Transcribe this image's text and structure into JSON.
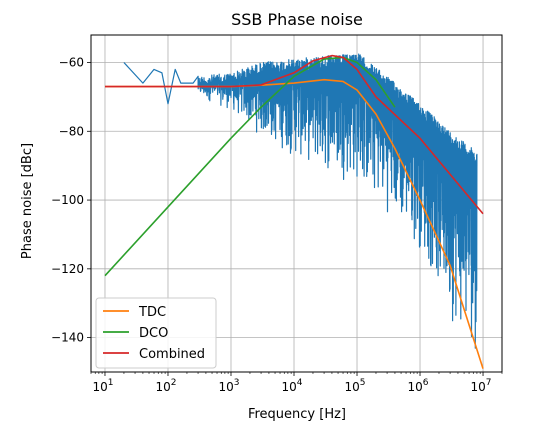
{
  "chart_data": {
    "type": "line",
    "title": "SSB Phase noise",
    "xlabel": "Frequency [Hz]",
    "ylabel": "Phase noise [dBc]",
    "xscale": "log",
    "xlim": [
      6,
      20000000
    ],
    "ylim": [
      -150,
      -52
    ],
    "grid": true,
    "legend": {
      "position": "bottom-left",
      "entries": [
        "TDC",
        "DCO",
        "Combined"
      ]
    },
    "x_ticks": [
      {
        "base": "10",
        "exp": "1"
      },
      {
        "base": "10",
        "exp": "2"
      },
      {
        "base": "10",
        "exp": "3"
      },
      {
        "base": "10",
        "exp": "4"
      },
      {
        "base": "10",
        "exp": "5"
      },
      {
        "base": "10",
        "exp": "6"
      },
      {
        "base": "10",
        "exp": "7"
      }
    ],
    "y_ticks": [
      "−140",
      "−120",
      "−100",
      "−80",
      "−60"
    ],
    "measured": {
      "color": "#1f77b4",
      "x_range": [
        20,
        8000000
      ],
      "start_points": [
        [
          20,
          -60
        ],
        [
          40,
          -66
        ],
        [
          60,
          -62
        ],
        [
          80,
          -63
        ],
        [
          100,
          -72
        ],
        [
          130,
          -62
        ],
        [
          160,
          -66
        ],
        [
          200,
          -66
        ],
        [
          250,
          -66
        ],
        [
          300,
          -64
        ]
      ],
      "upper_envelope": [
        [
          300,
          -64
        ],
        [
          1000,
          -63
        ],
        [
          3000,
          -60
        ],
        [
          10000,
          -59
        ],
        [
          30000,
          -58
        ],
        [
          50000,
          -58
        ],
        [
          100000,
          -57
        ],
        [
          300000,
          -64
        ],
        [
          1000000,
          -72
        ],
        [
          3000000,
          -80
        ],
        [
          8000000,
          -86
        ]
      ],
      "lower_envelope": [
        [
          300,
          -70
        ],
        [
          1000,
          -74
        ],
        [
          3000,
          -82
        ],
        [
          10000,
          -88
        ],
        [
          30000,
          -92
        ],
        [
          100000,
          -96
        ],
        [
          300000,
          -104
        ],
        [
          1000000,
          -115
        ],
        [
          3000000,
          -135
        ],
        [
          8000000,
          -146
        ]
      ],
      "tail_floor": -90
    },
    "series": [
      {
        "name": "TDC",
        "color": "#ff7f0e",
        "points": [
          [
            10,
            -67
          ],
          [
            100,
            -67
          ],
          [
            1000,
            -67
          ],
          [
            3000,
            -66.6
          ],
          [
            10000,
            -66
          ],
          [
            30000,
            -65
          ],
          [
            60000,
            -65.5
          ],
          [
            100000,
            -68
          ],
          [
            200000,
            -75
          ],
          [
            400000,
            -85
          ],
          [
            1000000,
            -100
          ],
          [
            3000000,
            -119
          ],
          [
            10000000,
            -149
          ]
        ]
      },
      {
        "name": "DCO",
        "color": "#2ca02c",
        "points": [
          [
            10,
            -122
          ],
          [
            100,
            -102
          ],
          [
            1000,
            -82
          ],
          [
            3000,
            -73
          ],
          [
            10000,
            -64
          ],
          [
            30000,
            -59
          ],
          [
            60000,
            -58.5
          ],
          [
            100000,
            -60
          ],
          [
            200000,
            -65
          ],
          [
            400000,
            -73
          ]
        ]
      },
      {
        "name": "Combined",
        "color": "#d62728",
        "points": [
          [
            10,
            -67
          ],
          [
            1000,
            -67
          ],
          [
            3000,
            -66.5
          ],
          [
            10000,
            -63
          ],
          [
            20000,
            -59.5
          ],
          [
            40000,
            -58
          ],
          [
            60000,
            -58.5
          ],
          [
            100000,
            -62
          ],
          [
            200000,
            -70
          ],
          [
            1000000,
            -82
          ],
          [
            10000000,
            -104
          ]
        ]
      }
    ]
  }
}
